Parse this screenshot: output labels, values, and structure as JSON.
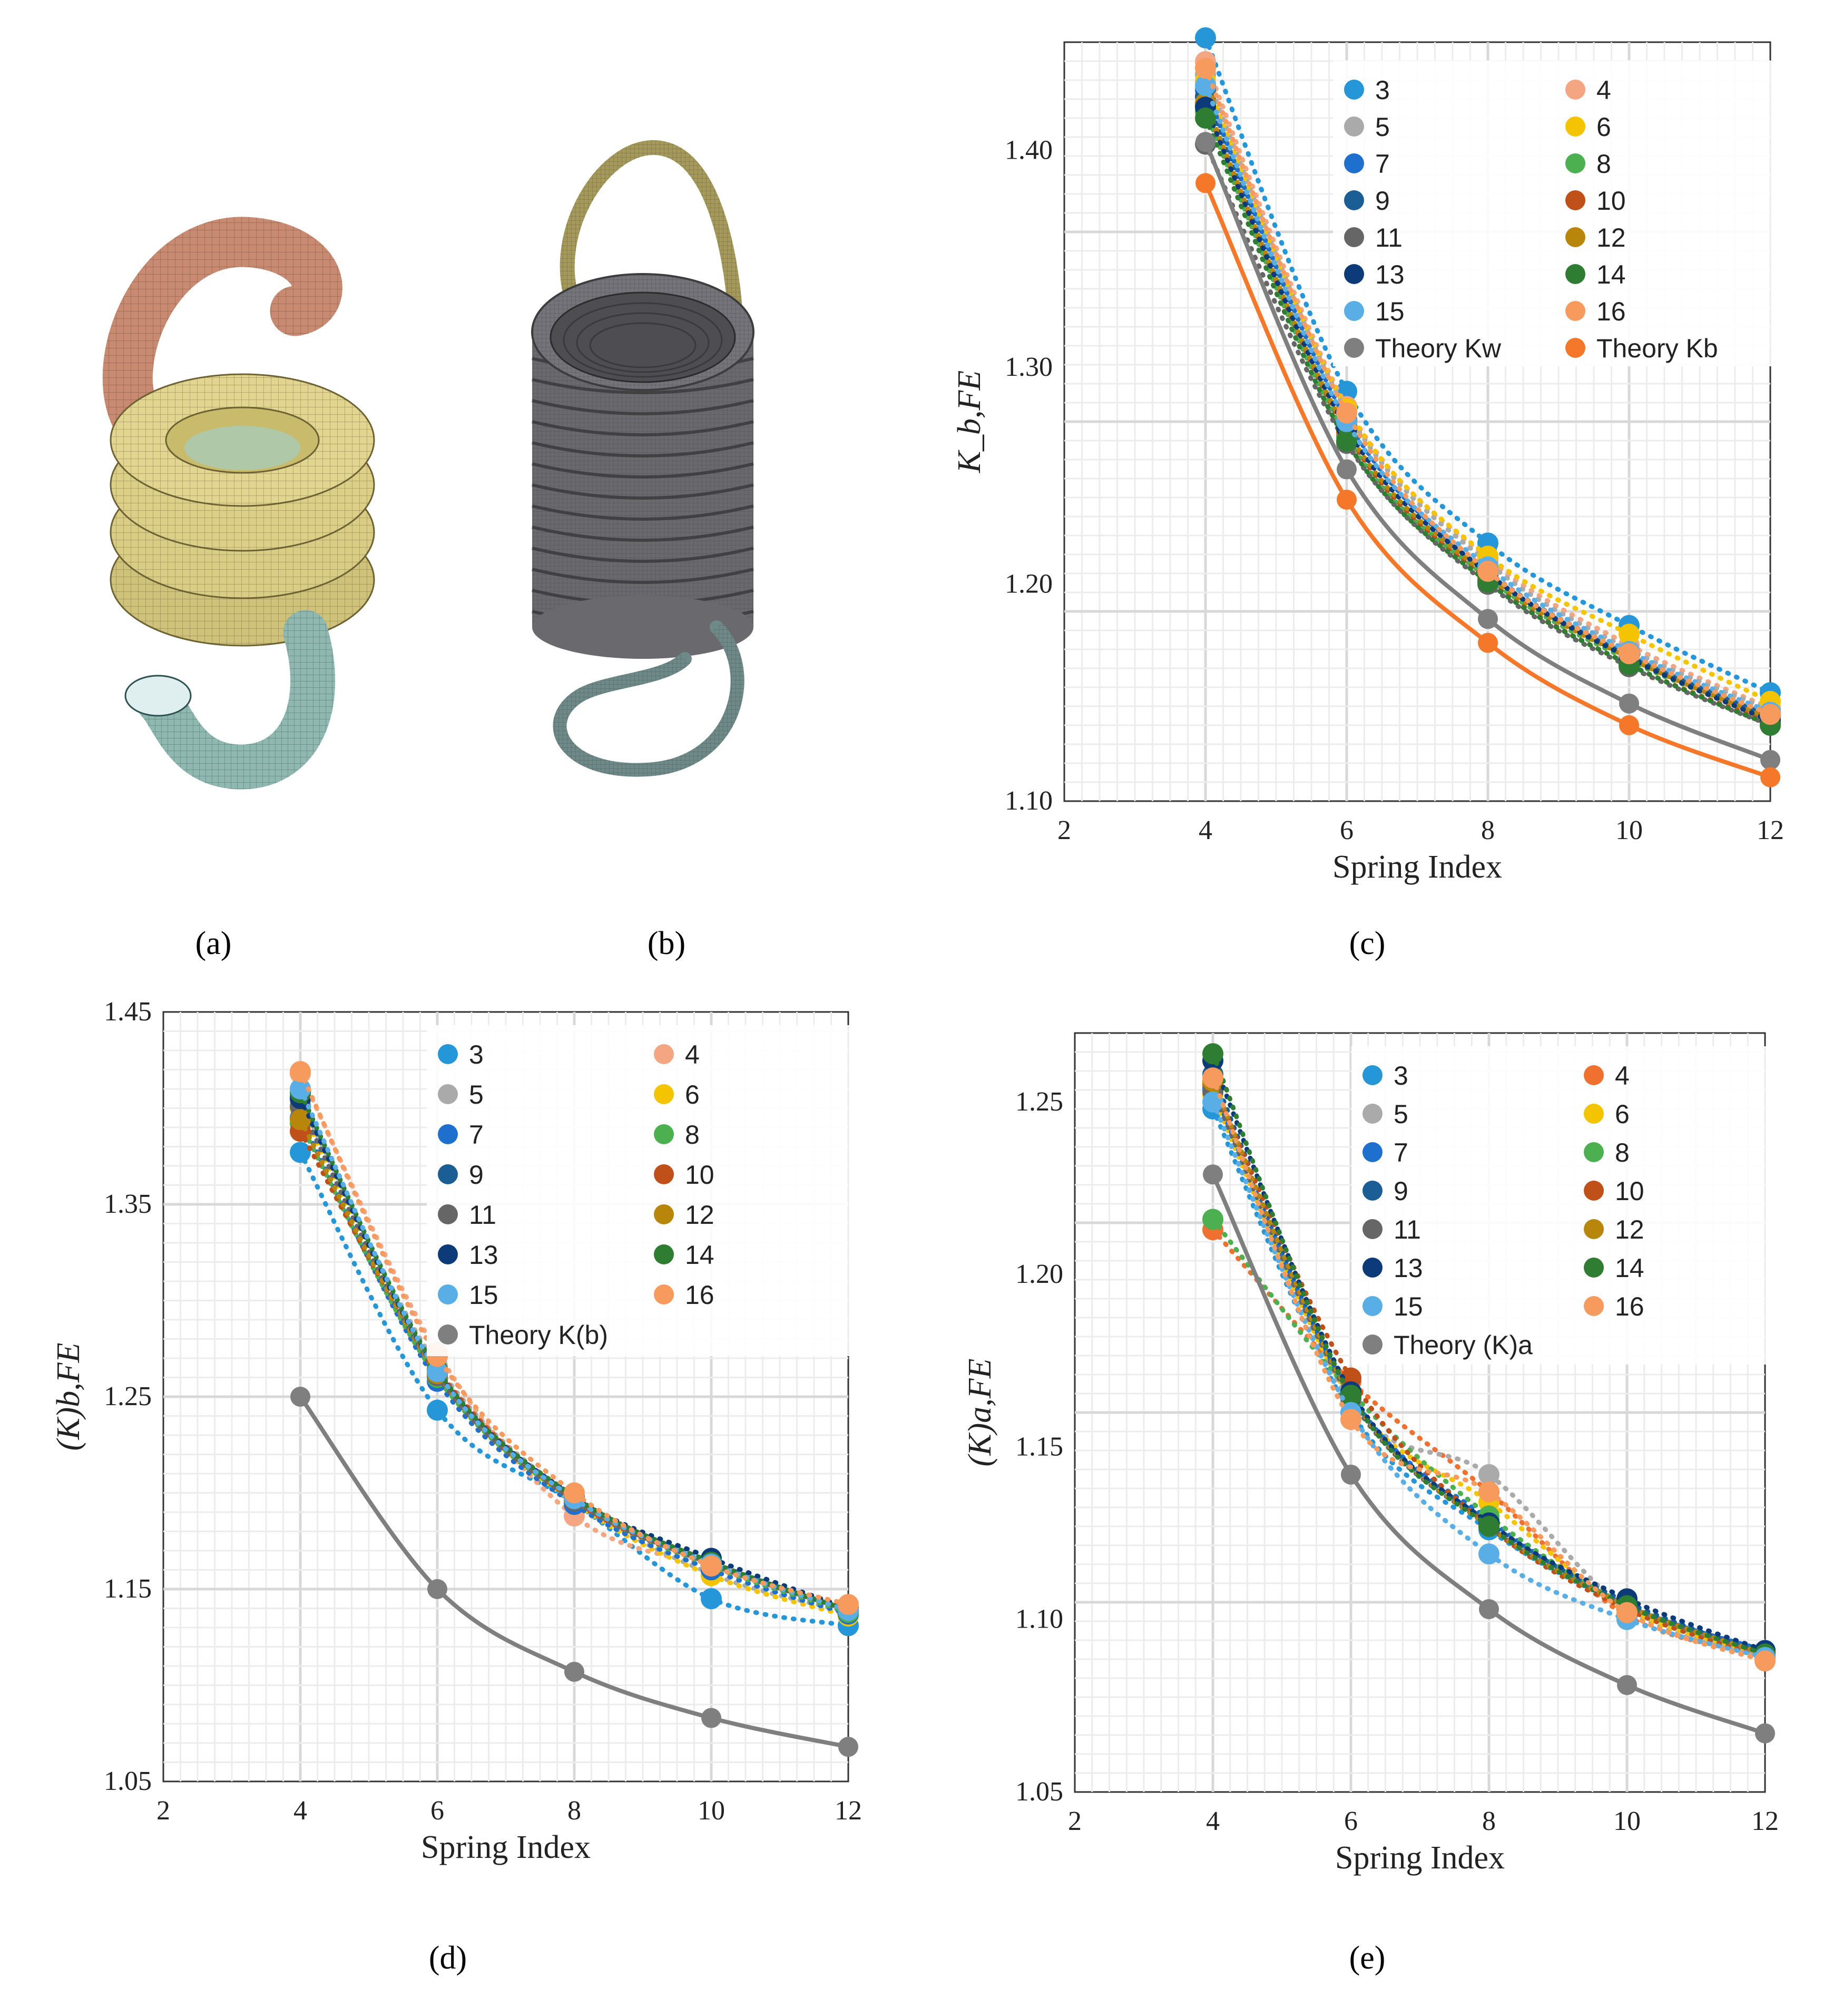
{
  "captions": {
    "a": "(a)",
    "b": "(b)",
    "c": "(c)",
    "d": "(d)",
    "e": "(e)"
  },
  "colors": {
    "3": "#2596d8",
    "4": "#f4a582",
    "5": "#aaaaaa",
    "6": "#f5c400",
    "7": "#1f6fcf",
    "8": "#4caf50",
    "9": "#1b5e95",
    "10": "#c0501a",
    "11": "#666666",
    "12": "#b8860b",
    "13": "#0d3b7a",
    "14": "#2e7d32",
    "15": "#5aaee6",
    "16": "#f79a5e",
    "theory_gray": "#7f7f7f",
    "theory_orange": "#f5782a",
    "4e": "#f07030"
  },
  "chart_data": [
    {
      "id": "c",
      "type": "scatter",
      "xlabel": "Spring Index",
      "ylabel": "K_b,FE",
      "xlim": [
        2,
        12
      ],
      "ylim": [
        1.1,
        1.45
      ],
      "xticks": [
        "2",
        "4",
        "6",
        "8",
        "10",
        "12"
      ],
      "yticks": [
        "1.10",
        "1.20",
        "1.30",
        "1.40"
      ],
      "x": [
        4,
        6,
        8,
        10,
        12
      ],
      "series": [
        {
          "name": "3",
          "color": "3",
          "values": [
            1.452,
            1.289,
            1.219,
            1.181,
            1.15
          ]
        },
        {
          "name": "4",
          "color": "4",
          "values": [
            1.441,
            1.282,
            1.212,
            1.172,
            1.143
          ]
        },
        {
          "name": "5",
          "color": "5",
          "values": [
            1.435,
            1.28,
            1.21,
            1.17,
            1.142
          ]
        },
        {
          "name": "6",
          "color": "6",
          "values": [
            1.432,
            1.281,
            1.213,
            1.177,
            1.146
          ]
        },
        {
          "name": "7",
          "color": "7",
          "values": [
            1.428,
            1.276,
            1.206,
            1.168,
            1.14
          ]
        },
        {
          "name": "8",
          "color": "8",
          "values": [
            1.418,
            1.268,
            1.203,
            1.165,
            1.138
          ]
        },
        {
          "name": "9",
          "color": "9",
          "values": [
            1.425,
            1.273,
            1.205,
            1.167,
            1.139
          ]
        },
        {
          "name": "10",
          "color": "10",
          "values": [
            1.421,
            1.27,
            1.202,
            1.163,
            1.136
          ]
        },
        {
          "name": "11",
          "color": "11",
          "values": [
            1.403,
            1.265,
            1.2,
            1.162,
            1.135
          ]
        },
        {
          "name": "12",
          "color": "12",
          "values": [
            1.422,
            1.271,
            1.204,
            1.166,
            1.138
          ]
        },
        {
          "name": "13",
          "color": "13",
          "values": [
            1.42,
            1.272,
            1.205,
            1.166,
            1.137
          ]
        },
        {
          "name": "14",
          "color": "14",
          "values": [
            1.415,
            1.266,
            1.201,
            1.163,
            1.135
          ]
        },
        {
          "name": "15",
          "color": "15",
          "values": [
            1.43,
            1.275,
            1.208,
            1.169,
            1.141
          ]
        },
        {
          "name": "16",
          "color": "16",
          "values": [
            1.438,
            1.279,
            1.206,
            1.168,
            1.14
          ]
        },
        {
          "name": "Theory Kw",
          "color": "theory_gray",
          "theory": true,
          "values": [
            1.404,
            1.253,
            1.184,
            1.145,
            1.119
          ]
        },
        {
          "name": "Theory Kb",
          "color": "theory_orange",
          "theory": true,
          "values": [
            1.385,
            1.239,
            1.173,
            1.135,
            1.111
          ]
        }
      ]
    },
    {
      "id": "d",
      "type": "scatter",
      "xlabel": "Spring Index",
      "ylabel": "(K)b,FE",
      "xlim": [
        2,
        12
      ],
      "ylim": [
        1.05,
        1.45
      ],
      "xticks": [
        "2",
        "4",
        "6",
        "8",
        "10",
        "12"
      ],
      "yticks": [
        "1.05",
        "1.15",
        "1.25",
        "1.35",
        "1.45"
      ],
      "x": [
        4,
        6,
        8,
        10,
        12
      ],
      "series": [
        {
          "name": "3",
          "color": "3",
          "values": [
            1.377,
            1.243,
            1.195,
            1.145,
            1.131
          ]
        },
        {
          "name": "4",
          "color": "4",
          "values": [
            1.418,
            1.273,
            1.188,
            1.161,
            1.14
          ]
        },
        {
          "name": "5",
          "color": "5",
          "values": [
            1.404,
            1.266,
            1.197,
            1.158,
            1.138
          ]
        },
        {
          "name": "6",
          "color": "6",
          "values": [
            1.4,
            1.261,
            1.195,
            1.157,
            1.136
          ]
        },
        {
          "name": "7",
          "color": "7",
          "values": [
            1.395,
            1.258,
            1.194,
            1.16,
            1.137
          ]
        },
        {
          "name": "8",
          "color": "8",
          "values": [
            1.392,
            1.26,
            1.196,
            1.162,
            1.138
          ]
        },
        {
          "name": "9",
          "color": "9",
          "values": [
            1.406,
            1.262,
            1.197,
            1.164,
            1.139
          ]
        },
        {
          "name": "10",
          "color": "10",
          "values": [
            1.388,
            1.264,
            1.196,
            1.163,
            1.139
          ]
        },
        {
          "name": "11",
          "color": "11",
          "values": [
            1.401,
            1.261,
            1.196,
            1.163,
            1.139
          ]
        },
        {
          "name": "12",
          "color": "12",
          "values": [
            1.394,
            1.262,
            1.197,
            1.163,
            1.139
          ]
        },
        {
          "name": "13",
          "color": "13",
          "values": [
            1.405,
            1.263,
            1.198,
            1.166,
            1.14
          ]
        },
        {
          "name": "14",
          "color": "14",
          "values": [
            1.408,
            1.264,
            1.198,
            1.164,
            1.139
          ]
        },
        {
          "name": "15",
          "color": "15",
          "values": [
            1.41,
            1.263,
            1.197,
            1.163,
            1.139
          ]
        },
        {
          "name": "16",
          "color": "16",
          "values": [
            1.419,
            1.271,
            1.2,
            1.162,
            1.142
          ]
        },
        {
          "name": "Theory K(b)",
          "color": "theory_gray",
          "theory": true,
          "values": [
            1.25,
            1.15,
            1.107,
            1.083,
            1.068
          ]
        }
      ]
    },
    {
      "id": "e",
      "type": "scatter",
      "xlabel": "Spring Index",
      "ylabel": "(K)a,FE",
      "xlim": [
        2,
        12
      ],
      "ylim": [
        1.05,
        1.27
      ],
      "xticks": [
        "2",
        "4",
        "6",
        "8",
        "10",
        "12"
      ],
      "yticks": [
        "1.05",
        "1.10",
        "1.15",
        "1.20",
        "1.25"
      ],
      "x": [
        4,
        6,
        8,
        10,
        12
      ],
      "series": [
        {
          "name": "3",
          "color": "3",
          "values": [
            1.248,
            1.16,
            1.126,
            1.104,
            1.091
          ]
        },
        {
          "name": "4",
          "color": "4e",
          "values": [
            1.213,
            1.169,
            1.137,
            1.101,
            1.09
          ]
        },
        {
          "name": "5",
          "color": "5",
          "values": [
            1.256,
            1.163,
            1.142,
            1.103,
            1.089
          ]
        },
        {
          "name": "6",
          "color": "6",
          "values": [
            1.252,
            1.164,
            1.134,
            1.103,
            1.09
          ]
        },
        {
          "name": "7",
          "color": "7",
          "values": [
            1.254,
            1.165,
            1.129,
            1.104,
            1.091
          ]
        },
        {
          "name": "8",
          "color": "8",
          "values": [
            1.216,
            1.166,
            1.13,
            1.104,
            1.09
          ]
        },
        {
          "name": "9",
          "color": "9",
          "values": [
            1.258,
            1.165,
            1.128,
            1.105,
            1.09
          ]
        },
        {
          "name": "10",
          "color": "10",
          "values": [
            1.255,
            1.17,
            1.127,
            1.103,
            1.089
          ]
        },
        {
          "name": "11",
          "color": "11",
          "values": [
            1.253,
            1.164,
            1.127,
            1.104,
            1.09
          ]
        },
        {
          "name": "12",
          "color": "12",
          "values": [
            1.256,
            1.165,
            1.127,
            1.104,
            1.09
          ]
        },
        {
          "name": "13",
          "color": "13",
          "values": [
            1.262,
            1.166,
            1.128,
            1.106,
            1.091
          ]
        },
        {
          "name": "14",
          "color": "14",
          "values": [
            1.264,
            1.165,
            1.127,
            1.104,
            1.09
          ]
        },
        {
          "name": "15",
          "color": "15",
          "values": [
            1.25,
            1.16,
            1.119,
            1.1,
            1.089
          ]
        },
        {
          "name": "16",
          "color": "16",
          "values": [
            1.257,
            1.158,
            1.137,
            1.102,
            1.088
          ]
        },
        {
          "name": "Theory (K)a",
          "color": "theory_gray",
          "theory": true,
          "values": [
            1.229,
            1.142,
            1.103,
            1.081,
            1.067
          ]
        }
      ]
    }
  ]
}
